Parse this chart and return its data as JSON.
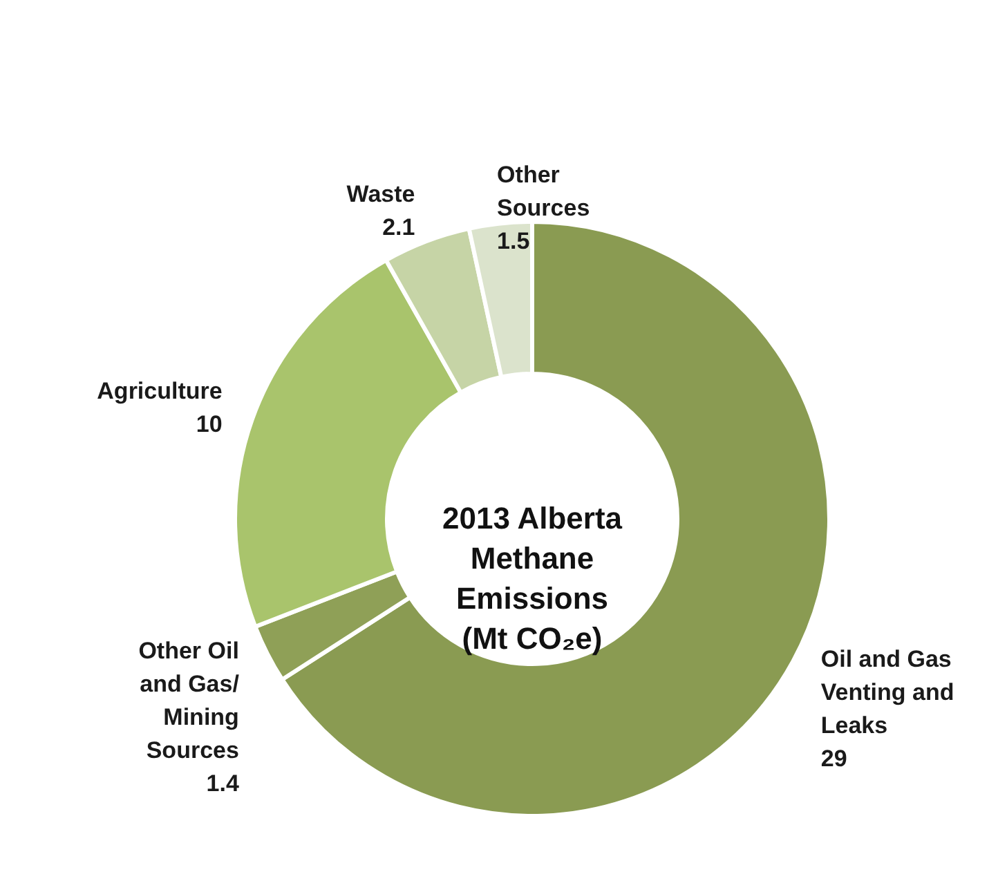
{
  "chart_data": {
    "type": "donut",
    "title": "2013 Alberta Methane Emissions (Mt CO₂e)",
    "categories": [
      "Oil and Gas Venting and Leaks",
      "Other Oil and Gas/Mining Sources",
      "Agriculture",
      "Waste",
      "Other Sources"
    ],
    "values": [
      29,
      1.4,
      10,
      2.1,
      1.5
    ],
    "colors": [
      "#8a9b52",
      "#8fa057",
      "#a9c46c",
      "#c6d4a6",
      "#dbe3cc"
    ],
    "data_labels": true
  }
}
